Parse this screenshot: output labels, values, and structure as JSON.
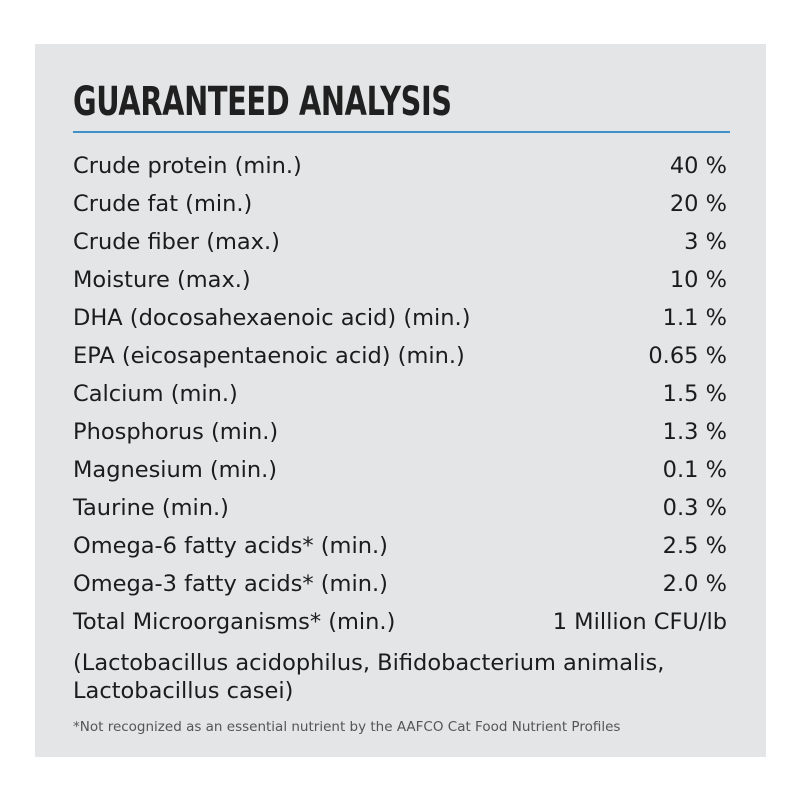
{
  "title": "GUARANTEED ANALYSIS",
  "rows": [
    {
      "label": "Crude protein (min.)",
      "value": "40 %"
    },
    {
      "label": "Crude fat (min.)",
      "value": "20 %"
    },
    {
      "label": "Crude fiber (max.)",
      "value": "3 %"
    },
    {
      "label": "Moisture (max.)",
      "value": "10 %"
    },
    {
      "label": "DHA (docosahexaenoic acid) (min.)",
      "value": "1.1 %"
    },
    {
      "label": "EPA (eicosapentaenoic acid) (min.)",
      "value": "0.65 %"
    },
    {
      "label": "Calcium (min.)",
      "value": "1.5 %"
    },
    {
      "label": "Phosphorus (min.)",
      "value": "1.3 %"
    },
    {
      "label": "Magnesium (min.)",
      "value": "0.1 %"
    },
    {
      "label": "Taurine (min.)",
      "value": "0.3 %"
    },
    {
      "label": "Omega-6 fatty acids* (min.)",
      "value": "2.5 %"
    },
    {
      "label": "Omega-3 fatty acids* (min.)",
      "value": "2.0 %"
    },
    {
      "label": "Total Microorganisms* (min.)",
      "value": "1 Million CFU/lb"
    }
  ],
  "microorganisms_note": "(Lactobacillus acidophilus, Bifidobacterium animalis, Lactobacillus casei)",
  "footnote": "*Not recognized as an essential nutrient by the AAFCO Cat Food Nutrient Profiles",
  "colors": {
    "panel_background": "#e3e5e6",
    "rule": "#3f8fc9",
    "text": "#1c1c1c"
  }
}
